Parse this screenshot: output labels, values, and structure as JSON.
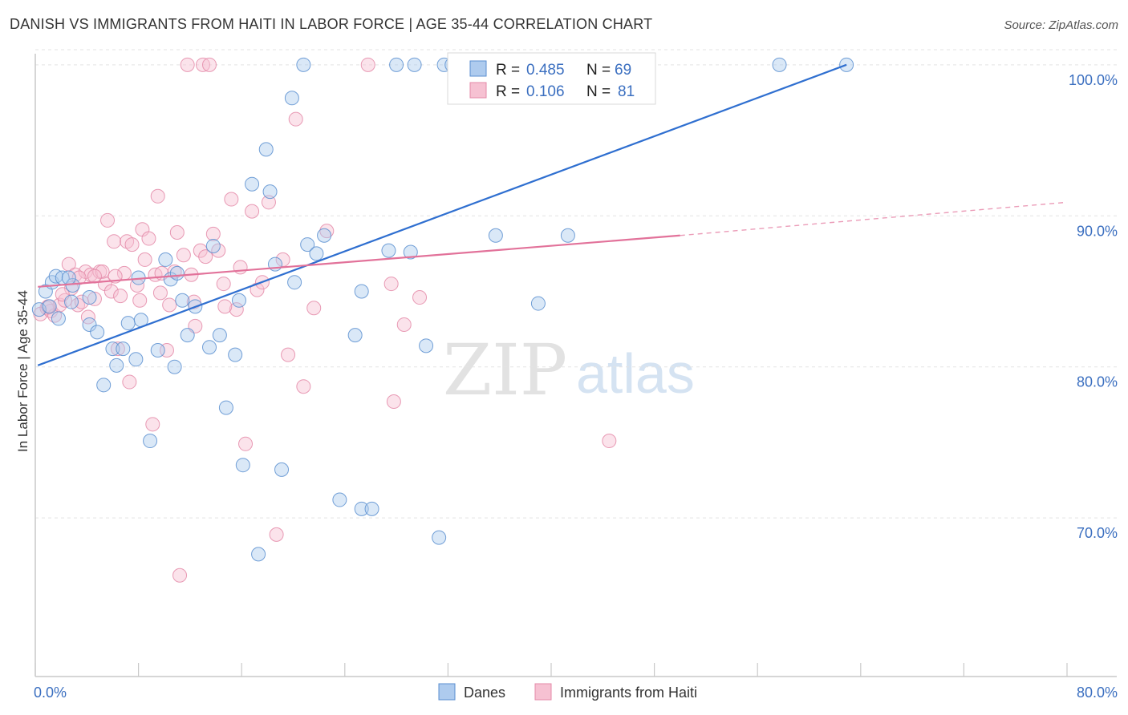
{
  "title": "DANISH VS IMMIGRANTS FROM HAITI IN LABOR FORCE | AGE 35-44 CORRELATION CHART",
  "source": "Source: ZipAtlas.com",
  "watermark": {
    "zip": "ZIP",
    "atlas": "atlas"
  },
  "colors": {
    "danes_fill": "#aecbee",
    "danes_stroke": "#5b8fd0",
    "danes_line": "#2f6fd0",
    "haiti_fill": "#f6c1d2",
    "haiti_stroke": "#e48aa8",
    "haiti_line": "#e2729a",
    "tick_label": "#3b6fc0",
    "grid": "#e3e3e3"
  },
  "legend_top": {
    "rows": [
      {
        "series": "danes",
        "r_label": "R =",
        "r_value": "0.485",
        "n_label": "N =",
        "n_value": "69"
      },
      {
        "series": "haiti",
        "r_label": "R =",
        "r_value": "0.106",
        "n_label": "N =",
        "n_value": "81"
      }
    ]
  },
  "legend_bottom": [
    {
      "series": "danes",
      "label": "Danes"
    },
    {
      "series": "haiti",
      "label": "Immigrants from Haiti"
    }
  ],
  "chart_data": {
    "type": "scatter",
    "title": "DANISH VS IMMIGRANTS FROM HAITI IN LABOR FORCE | AGE 35-44 CORRELATION CHART",
    "xlabel": "",
    "ylabel": "In Labor Force | Age 35-44",
    "xlim": [
      0,
      80
    ],
    "ylim": [
      59.5,
      101
    ],
    "x_tick_labels": [
      {
        "value": 0,
        "label": "0.0%"
      },
      {
        "value": 80,
        "label": "80.0%"
      }
    ],
    "y_tick_labels": [
      {
        "value": 100,
        "label": "100.0%"
      },
      {
        "value": 90,
        "label": "90.0%"
      },
      {
        "value": 80,
        "label": "80.0%"
      },
      {
        "value": 70,
        "label": "70.0%"
      }
    ],
    "x_minor_ticks": [
      0,
      8,
      16,
      24,
      32,
      40,
      48,
      56,
      64,
      72,
      80
    ],
    "grid": true,
    "legend_placement": "top-center",
    "series": [
      {
        "name": "Danes",
        "color_key": "danes",
        "trend": {
          "x": [
            0.2,
            62.9
          ],
          "y": [
            80.1,
            100.0
          ],
          "dashed_to": null
        },
        "points": [
          [
            0.3,
            83.8
          ],
          [
            0.8,
            85.0
          ],
          [
            1.1,
            84.0
          ],
          [
            1.3,
            85.6
          ],
          [
            1.6,
            86.0
          ],
          [
            2.1,
            85.9
          ],
          [
            2.9,
            85.4
          ],
          [
            2.8,
            84.3
          ],
          [
            4.2,
            82.8
          ],
          [
            4.8,
            82.3
          ],
          [
            5.3,
            78.8
          ],
          [
            6.0,
            81.2
          ],
          [
            6.3,
            80.1
          ],
          [
            6.8,
            81.2
          ],
          [
            7.2,
            82.9
          ],
          [
            7.8,
            80.5
          ],
          [
            8.2,
            83.1
          ],
          [
            8.9,
            75.1
          ],
          [
            9.5,
            81.1
          ],
          [
            10.1,
            87.1
          ],
          [
            10.5,
            85.8
          ],
          [
            10.8,
            80.0
          ],
          [
            11.4,
            84.4
          ],
          [
            11.8,
            82.1
          ],
          [
            12.4,
            84.0
          ],
          [
            13.5,
            81.3
          ],
          [
            13.8,
            88.0
          ],
          [
            14.3,
            82.1
          ],
          [
            14.8,
            77.3
          ],
          [
            15.5,
            80.8
          ],
          [
            15.8,
            84.4
          ],
          [
            16.1,
            73.5
          ],
          [
            16.8,
            92.1
          ],
          [
            17.3,
            67.6
          ],
          [
            17.9,
            94.4
          ],
          [
            18.2,
            91.6
          ],
          [
            18.6,
            86.8
          ],
          [
            19.1,
            73.2
          ],
          [
            19.9,
            97.8
          ],
          [
            20.1,
            85.6
          ],
          [
            20.8,
            100.0
          ],
          [
            21.1,
            88.1
          ],
          [
            21.8,
            87.5
          ],
          [
            22.4,
            88.7
          ],
          [
            23.6,
            71.2
          ],
          [
            24.8,
            82.1
          ],
          [
            25.3,
            85.0
          ],
          [
            25.3,
            70.6
          ],
          [
            26.1,
            70.6
          ],
          [
            27.4,
            87.7
          ],
          [
            28.0,
            100.0
          ],
          [
            29.1,
            87.6
          ],
          [
            29.4,
            100.0
          ],
          [
            30.3,
            81.4
          ],
          [
            31.3,
            68.7
          ],
          [
            31.7,
            100.0
          ],
          [
            32.3,
            100.0
          ],
          [
            35.7,
            88.7
          ],
          [
            37.0,
            100.0
          ],
          [
            39.0,
            84.2
          ],
          [
            41.3,
            88.7
          ],
          [
            47.3,
            100.0
          ],
          [
            57.7,
            100.0
          ],
          [
            62.9,
            100.0
          ],
          [
            2.6,
            85.9
          ],
          [
            8.0,
            85.9
          ],
          [
            11.0,
            86.2
          ],
          [
            4.2,
            84.6
          ],
          [
            1.8,
            83.2
          ]
        ]
      },
      {
        "name": "Immigrants from Haiti",
        "color_key": "haiti",
        "trend": {
          "x": [
            0.2,
            50.0
          ],
          "y": [
            85.3,
            88.7
          ],
          "dashed_to": [
            80.0,
            90.9
          ]
        },
        "points": [
          [
            0.4,
            83.5
          ],
          [
            0.9,
            83.9
          ],
          [
            1.2,
            83.7
          ],
          [
            1.5,
            83.4
          ],
          [
            1.9,
            84.1
          ],
          [
            2.3,
            84.4
          ],
          [
            2.6,
            86.8
          ],
          [
            2.8,
            85.2
          ],
          [
            3.1,
            86.1
          ],
          [
            3.3,
            84.1
          ],
          [
            3.6,
            84.3
          ],
          [
            3.9,
            86.3
          ],
          [
            4.1,
            83.3
          ],
          [
            4.3,
            86.1
          ],
          [
            4.6,
            84.5
          ],
          [
            5.0,
            86.3
          ],
          [
            5.2,
            86.3
          ],
          [
            5.4,
            85.5
          ],
          [
            5.6,
            89.7
          ],
          [
            5.9,
            85.0
          ],
          [
            6.1,
            88.3
          ],
          [
            6.4,
            81.2
          ],
          [
            6.6,
            84.7
          ],
          [
            6.9,
            86.2
          ],
          [
            7.1,
            88.3
          ],
          [
            7.3,
            79.0
          ],
          [
            7.5,
            88.1
          ],
          [
            7.9,
            85.4
          ],
          [
            8.1,
            84.4
          ],
          [
            8.3,
            89.1
          ],
          [
            8.5,
            87.1
          ],
          [
            8.8,
            88.5
          ],
          [
            9.1,
            76.2
          ],
          [
            9.3,
            86.1
          ],
          [
            9.5,
            91.3
          ],
          [
            9.8,
            86.2
          ],
          [
            10.2,
            81.1
          ],
          [
            10.4,
            84.1
          ],
          [
            10.8,
            86.3
          ],
          [
            11.0,
            88.9
          ],
          [
            11.2,
            66.2
          ],
          [
            11.5,
            87.4
          ],
          [
            11.8,
            100.0
          ],
          [
            12.1,
            86.1
          ],
          [
            12.4,
            82.7
          ],
          [
            12.8,
            87.7
          ],
          [
            13.0,
            100.0
          ],
          [
            13.2,
            87.3
          ],
          [
            13.5,
            100.0
          ],
          [
            13.8,
            88.8
          ],
          [
            14.2,
            87.7
          ],
          [
            14.6,
            85.5
          ],
          [
            15.2,
            91.1
          ],
          [
            15.6,
            83.8
          ],
          [
            15.9,
            86.6
          ],
          [
            16.3,
            74.9
          ],
          [
            16.8,
            90.3
          ],
          [
            17.2,
            85.1
          ],
          [
            17.6,
            85.6
          ],
          [
            18.1,
            90.9
          ],
          [
            18.7,
            68.9
          ],
          [
            19.2,
            87.1
          ],
          [
            19.6,
            80.8
          ],
          [
            20.2,
            96.4
          ],
          [
            20.8,
            78.7
          ],
          [
            21.6,
            83.9
          ],
          [
            22.6,
            89.0
          ],
          [
            25.8,
            100.0
          ],
          [
            27.6,
            85.5
          ],
          [
            27.8,
            77.7
          ],
          [
            28.6,
            82.8
          ],
          [
            29.8,
            84.6
          ],
          [
            44.5,
            75.1
          ],
          [
            1.0,
            84.0
          ],
          [
            2.1,
            84.8
          ],
          [
            3.4,
            85.9
          ],
          [
            4.6,
            86.0
          ],
          [
            6.2,
            86.0
          ],
          [
            9.7,
            84.9
          ],
          [
            12.3,
            84.3
          ],
          [
            14.7,
            84.0
          ]
        ]
      }
    ]
  }
}
